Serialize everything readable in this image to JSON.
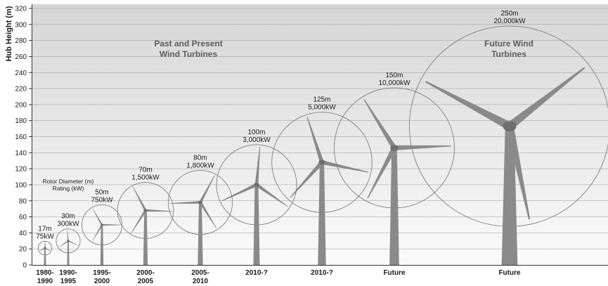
{
  "chart_data": {
    "type": "scatter",
    "title": "",
    "ylabel": "Hub Height (m)",
    "ylim": [
      0,
      320
    ],
    "yticks": [
      0,
      20,
      40,
      60,
      80,
      100,
      120,
      140,
      160,
      180,
      200,
      220,
      240,
      260,
      280,
      300,
      320
    ],
    "grid": true,
    "legend_note": {
      "line1": "Rotor Diameter (m)",
      "line2": "Rating (kW)"
    },
    "region_labels": {
      "past": {
        "line1": "Past and Present",
        "line2": "Wind Turbines"
      },
      "future": {
        "line1": "Future Wind",
        "line2": "Turbines"
      }
    },
    "turbines": [
      {
        "period_line1": "1980-",
        "period_line2": "1990",
        "rotor_diameter_label": "17m",
        "rating_label": "75kW",
        "rotor_diameter_m": 17,
        "rating_kw": 75,
        "hub_height_m": 21
      },
      {
        "period_line1": "1990-",
        "period_line2": "1995",
        "rotor_diameter_label": "30m",
        "rating_label": "300kW",
        "rotor_diameter_m": 30,
        "rating_kw": 300,
        "hub_height_m": 30
      },
      {
        "period_line1": "1995-",
        "period_line2": "2000",
        "rotor_diameter_label": "50m",
        "rating_label": "750kW",
        "rotor_diameter_m": 50,
        "rating_kw": 750,
        "hub_height_m": 50
      },
      {
        "period_line1": "2000-",
        "period_line2": "2005",
        "rotor_diameter_label": "70m",
        "rating_label": "1,500kW",
        "rotor_diameter_m": 70,
        "rating_kw": 1500,
        "hub_height_m": 68
      },
      {
        "period_line1": "2005-",
        "period_line2": "2010",
        "rotor_diameter_label": "80m",
        "rating_label": "1,800kW",
        "rotor_diameter_m": 80,
        "rating_kw": 1800,
        "hub_height_m": 78
      },
      {
        "period_line1": "2010-?",
        "period_line2": "",
        "rotor_diameter_label": "100m",
        "rating_label": "3,000kW",
        "rotor_diameter_m": 100,
        "rating_kw": 3000,
        "hub_height_m": 100
      },
      {
        "period_line1": "2010-?",
        "period_line2": "",
        "rotor_diameter_label": "125m",
        "rating_label": "5,000kW",
        "rotor_diameter_m": 125,
        "rating_kw": 5000,
        "hub_height_m": 128
      },
      {
        "period_line1": "Future",
        "period_line2": "",
        "rotor_diameter_label": "150m",
        "rating_label": "10,000kW",
        "rotor_diameter_m": 150,
        "rating_kw": 10000,
        "hub_height_m": 146
      },
      {
        "period_line1": "Future",
        "period_line2": "",
        "rotor_diameter_label": "250m",
        "rating_label": "20,000kW",
        "rotor_diameter_m": 250,
        "rating_kw": 20000,
        "hub_height_m": 173
      }
    ]
  }
}
